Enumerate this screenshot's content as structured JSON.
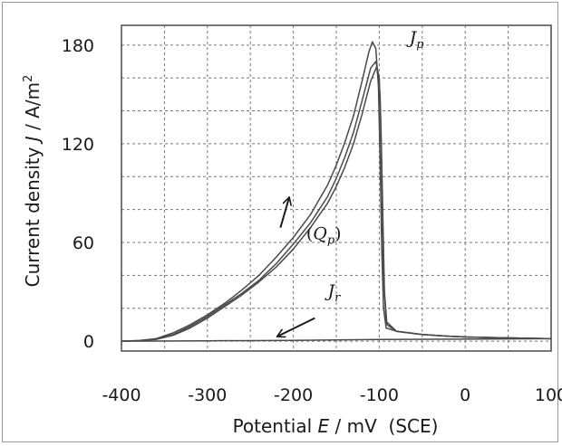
{
  "chart_data": {
    "type": "line",
    "title": "",
    "xlabel": {
      "prefix": "Potential ",
      "var": "E",
      "suffix": " / mV  (SCE)"
    },
    "ylabel": {
      "prefix": "Current density ",
      "var": "J",
      "suffix": " / A/m",
      "sup": "2"
    },
    "xlim": [
      -400,
      100
    ],
    "ylim": [
      -6,
      192
    ],
    "x_ticks": [
      -400,
      -300,
      -200,
      -100,
      0,
      100
    ],
    "x_tick_labels": [
      "-400",
      "-300",
      "-200",
      "-100",
      "0",
      "100"
    ],
    "y_ticks": [
      0,
      60,
      120,
      180
    ],
    "y_tick_labels": [
      "0",
      "60",
      "120",
      "180"
    ],
    "grid": true,
    "grid_x": [
      -400,
      -350,
      -300,
      -250,
      -200,
      -150,
      -100,
      -50,
      0,
      50
    ],
    "grid_y": [
      0,
      20,
      40,
      60,
      80,
      100,
      120,
      140,
      160,
      180
    ],
    "line_color": "#4a4a4a",
    "series": [
      {
        "values": [
          [
            -400,
            0
          ],
          [
            -380,
            0.3
          ],
          [
            -360,
            1.5
          ],
          [
            -340,
            5
          ],
          [
            -320,
            10
          ],
          [
            -300,
            16
          ],
          [
            -280,
            23
          ],
          [
            -260,
            31
          ],
          [
            -240,
            40
          ],
          [
            -220,
            51
          ],
          [
            -200,
            63
          ],
          [
            -180,
            77
          ],
          [
            -160,
            95
          ],
          [
            -150,
            107
          ],
          [
            -140,
            121
          ],
          [
            -130,
            137
          ],
          [
            -120,
            158
          ],
          [
            -112,
            176
          ],
          [
            -108,
            182
          ],
          [
            -104,
            178
          ],
          [
            -101,
            155
          ],
          [
            -99,
            110
          ],
          [
            -97,
            55
          ],
          [
            -95,
            20
          ],
          [
            -92,
            8
          ],
          [
            -80,
            6
          ],
          [
            -50,
            4
          ],
          [
            -20,
            3
          ],
          [
            0,
            2.5
          ],
          [
            50,
            2
          ],
          [
            100,
            1.5
          ]
        ]
      },
      {
        "values": [
          [
            -400,
            0
          ],
          [
            -380,
            0.3
          ],
          [
            -360,
            1.2
          ],
          [
            -340,
            4
          ],
          [
            -320,
            9
          ],
          [
            -300,
            15
          ],
          [
            -280,
            22
          ],
          [
            -260,
            29
          ],
          [
            -240,
            37
          ],
          [
            -220,
            47
          ],
          [
            -200,
            59
          ],
          [
            -180,
            72
          ],
          [
            -160,
            88
          ],
          [
            -150,
            99
          ],
          [
            -140,
            112
          ],
          [
            -130,
            127
          ],
          [
            -120,
            146
          ],
          [
            -110,
            166
          ],
          [
            -104,
            170
          ],
          [
            -100,
            160
          ],
          [
            -98,
            130
          ],
          [
            -96,
            80
          ],
          [
            -94,
            30
          ],
          [
            -91,
            10
          ],
          [
            -80,
            6
          ],
          [
            -50,
            4
          ],
          [
            -20,
            3
          ],
          [
            0,
            2.5
          ],
          [
            50,
            2
          ],
          [
            100,
            1.5
          ]
        ]
      },
      {
        "values": [
          [
            -400,
            0
          ],
          [
            -380,
            0.3
          ],
          [
            -360,
            1
          ],
          [
            -340,
            3.5
          ],
          [
            -320,
            8
          ],
          [
            -300,
            14
          ],
          [
            -280,
            21
          ],
          [
            -260,
            28
          ],
          [
            -240,
            36
          ],
          [
            -220,
            45
          ],
          [
            -200,
            56
          ],
          [
            -180,
            69
          ],
          [
            -160,
            84
          ],
          [
            -150,
            94
          ],
          [
            -140,
            106
          ],
          [
            -130,
            120
          ],
          [
            -120,
            138
          ],
          [
            -110,
            158
          ],
          [
            -103,
            167
          ],
          [
            -99,
            150
          ],
          [
            -97,
            100
          ],
          [
            -95,
            40
          ],
          [
            -92,
            12
          ],
          [
            -80,
            6
          ],
          [
            -50,
            4
          ],
          [
            -20,
            3
          ],
          [
            0,
            2.5
          ],
          [
            50,
            2
          ],
          [
            100,
            1.5
          ]
        ]
      },
      {
        "values": [
          [
            -400,
            0
          ],
          [
            -300,
            0.2
          ],
          [
            -200,
            0.5
          ],
          [
            -100,
            1
          ],
          [
            0,
            1.2
          ],
          [
            100,
            1.5
          ]
        ]
      }
    ],
    "annotations": [
      {
        "var": "J",
        "sub": "p",
        "x": -65,
        "y": 181
      },
      {
        "text_before": "(",
        "var": "Q",
        "sub": "p",
        "text_after": ")",
        "x": -185,
        "y": 62
      },
      {
        "var": "J",
        "sub": "r",
        "x": -160,
        "y": 27
      }
    ],
    "arrows": [
      {
        "from": [
          -215,
          69
        ],
        "to": [
          -205,
          87
        ],
        "direction": "forward sweep"
      },
      {
        "from": [
          -175,
          14
        ],
        "to": [
          -218,
          3
        ],
        "direction": "reverse sweep"
      }
    ]
  }
}
